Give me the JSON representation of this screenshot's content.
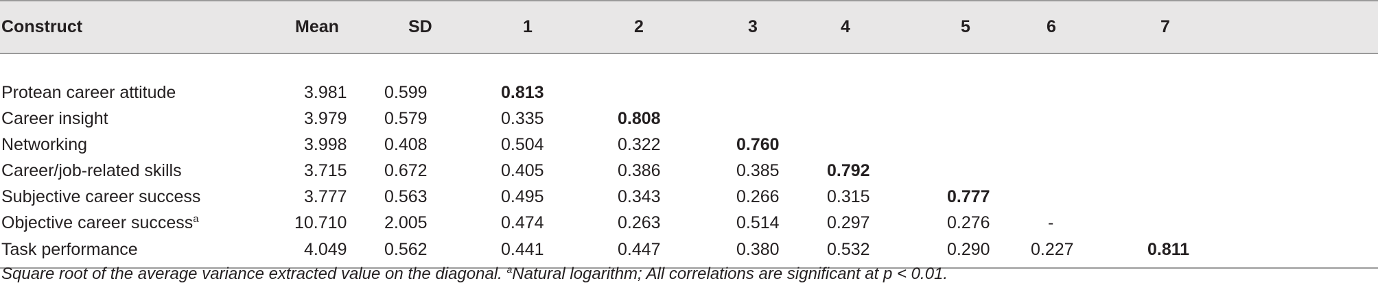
{
  "table": {
    "headers": [
      "Construct",
      "Mean",
      "SD",
      "1",
      "2",
      "3",
      "4",
      "5",
      "6",
      "7"
    ],
    "rows": [
      {
        "construct": "Protean career attitude",
        "sup": "",
        "mean": "3.981",
        "sd": "0.599",
        "c1": "0.813",
        "c2": "",
        "c3": "",
        "c4": "",
        "c5": "",
        "c6": "",
        "c7": ""
      },
      {
        "construct": "Career insight",
        "sup": "",
        "mean": "3.979",
        "sd": "0.579",
        "c1": "0.335",
        "c2": "0.808",
        "c3": "",
        "c4": "",
        "c5": "",
        "c6": "",
        "c7": ""
      },
      {
        "construct": "Networking",
        "sup": "",
        "mean": "3.998",
        "sd": "0.408",
        "c1": "0.504",
        "c2": "0.322",
        "c3": "0.760",
        "c4": "",
        "c5": "",
        "c6": "",
        "c7": ""
      },
      {
        "construct": "Career/job-related skills",
        "sup": "",
        "mean": "3.715",
        "sd": "0.672",
        "c1": "0.405",
        "c2": "0.386",
        "c3": "0.385",
        "c4": "0.792",
        "c5": "",
        "c6": "",
        "c7": ""
      },
      {
        "construct": "Subjective career success",
        "sup": "",
        "mean": "3.777",
        "sd": "0.563",
        "c1": "0.495",
        "c2": "0.343",
        "c3": "0.266",
        "c4": "0.315",
        "c5": "0.777",
        "c6": "",
        "c7": ""
      },
      {
        "construct": "Objective career success",
        "sup": "a",
        "mean": "10.710",
        "sd": "2.005",
        "c1": "0.474",
        "c2": "0.263",
        "c3": "0.514",
        "c4": "0.297",
        "c5": "0.276",
        "c6": "-",
        "c7": ""
      },
      {
        "construct": "Task performance",
        "sup": "",
        "mean": "4.049",
        "sd": "0.562",
        "c1": "0.441",
        "c2": "0.447",
        "c3": "0.380",
        "c4": "0.532",
        "c5": "0.290",
        "c6": "0.227",
        "c7": "0.811"
      }
    ]
  },
  "note": {
    "part1": "Square root of the average variance extracted value on the diagonal. ",
    "sup": "a",
    "part2": "Natural logarithm; All correlations are significant at p < 0.01."
  }
}
